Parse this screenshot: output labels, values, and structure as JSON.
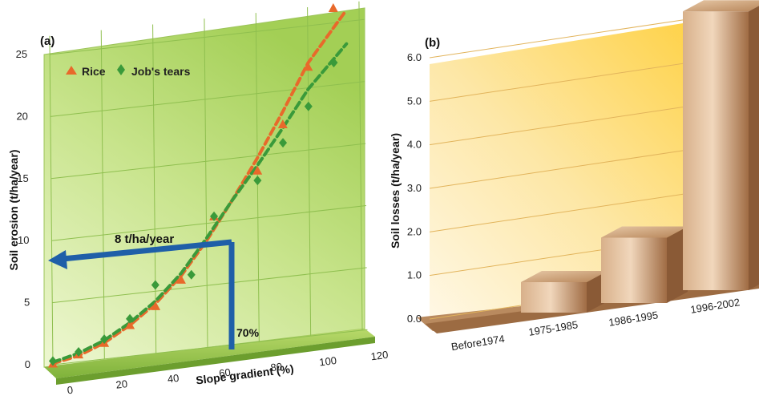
{
  "chart_data": [
    {
      "panel": "(a)",
      "type": "scatter",
      "xlabel": "Slope gradient (%)",
      "ylabel": "Soil erosion (t/ha/year)",
      "xlim": [
        0,
        120
      ],
      "ylim": [
        0,
        25
      ],
      "x_ticks": [
        "0",
        "20",
        "40",
        "60",
        "80",
        "100",
        "120"
      ],
      "y_ticks": [
        "0",
        "5",
        "10",
        "15",
        "20",
        "25"
      ],
      "grid": true,
      "legend": "top-left",
      "series": [
        {
          "name": "Rice",
          "marker": "triangle",
          "color": "#e8692b",
          "points": [
            [
              0,
              0.1
            ],
            [
              10,
              0.6
            ],
            [
              20,
              1.3
            ],
            [
              30,
              2.5
            ],
            [
              40,
              3.8
            ],
            [
              50,
              5.7
            ],
            [
              63,
              10.5
            ],
            [
              80,
              13.8
            ],
            [
              90,
              17.3
            ],
            [
              100,
              21.7
            ],
            [
              110,
              26.2
            ]
          ],
          "fit": [
            [
              0,
              0.1
            ],
            [
              10,
              0.5
            ],
            [
              20,
              1.3
            ],
            [
              30,
              2.5
            ],
            [
              40,
              4.0
            ],
            [
              50,
              6.0
            ],
            [
              60,
              8.6
            ],
            [
              70,
              11.6
            ],
            [
              80,
              14.8
            ],
            [
              90,
              18.3
            ],
            [
              100,
              22.0
            ],
            [
              115,
              25.9
            ]
          ]
        },
        {
          "name": "Job's tears",
          "marker": "diamond",
          "color": "#3a9a3a",
          "points": [
            [
              0,
              0.3
            ],
            [
              10,
              0.8
            ],
            [
              20,
              1.6
            ],
            [
              30,
              3.0
            ],
            [
              40,
              5.5
            ],
            [
              54,
              6.0
            ],
            [
              63,
              10.5
            ],
            [
              80,
              13.0
            ],
            [
              90,
              15.8
            ],
            [
              100,
              18.5
            ],
            [
              110,
              21.8
            ]
          ],
          "fit": [
            [
              0,
              0.2
            ],
            [
              10,
              0.7
            ],
            [
              20,
              1.5
            ],
            [
              30,
              2.7
            ],
            [
              40,
              4.2
            ],
            [
              50,
              6.2
            ],
            [
              60,
              8.8
            ],
            [
              70,
              11.6
            ],
            [
              80,
              14.2
            ],
            [
              90,
              17.0
            ],
            [
              100,
              19.9
            ],
            [
              115,
              23.2
            ]
          ]
        }
      ],
      "annotations": {
        "horizontal_label": "8 t/ha/year",
        "vertical_label": "70%",
        "color": "#1f5fa8"
      }
    },
    {
      "panel": "(b)",
      "type": "bar",
      "ylabel": "Soil losses (t/ha/year)",
      "categories": [
        "Before1974",
        "1975-1985",
        "1986-1995",
        "1996-2002"
      ],
      "values": [
        0.0,
        0.7,
        1.5,
        6.4
      ],
      "ylim": [
        0,
        6.0
      ],
      "y_ticks": [
        "0.0",
        "1.0",
        "2.0",
        "3.0",
        "4.0",
        "5.0",
        "6.0"
      ],
      "grid": true,
      "bar_color": "#b07a52"
    }
  ]
}
